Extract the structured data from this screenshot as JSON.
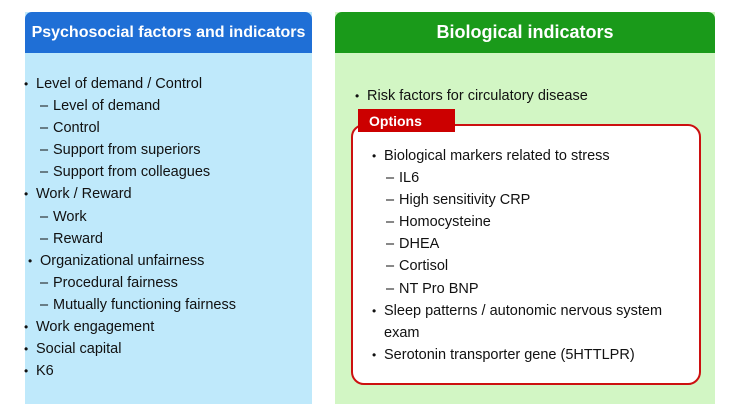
{
  "psychosocial": {
    "title": "Psychosocial factors and indicators",
    "items": [
      "Level of demand / Control",
      "Level of demand",
      "Control",
      "Support from superiors",
      "Support from colleagues",
      "Work / Reward",
      "Work",
      "Reward",
      "Organizational unfairness",
      "Procedural fairness",
      "Mutually functioning fairness",
      "Work engagement",
      "Social capital",
      "K6"
    ]
  },
  "biological": {
    "title": "Biological indicators",
    "items": [
      "Risk factors for circulatory disease"
    ],
    "options": {
      "label": "Options",
      "items": [
        "Biological markers related to stress",
        "IL6",
        "High sensitivity CRP",
        "Homocysteine",
        "DHEA",
        "Cortisol",
        "NT Pro BNP",
        "Sleep patterns / autonomic nervous system",
        "exam",
        "Serotonin transporter gene (5HTTLPR)"
      ]
    }
  },
  "colors": {
    "left_header": "#1f6fd6",
    "left_background": "#bfe9fb",
    "right_header": "#1a9a1a",
    "right_background": "#d2f6c4",
    "options_accent": "#cc0000"
  }
}
